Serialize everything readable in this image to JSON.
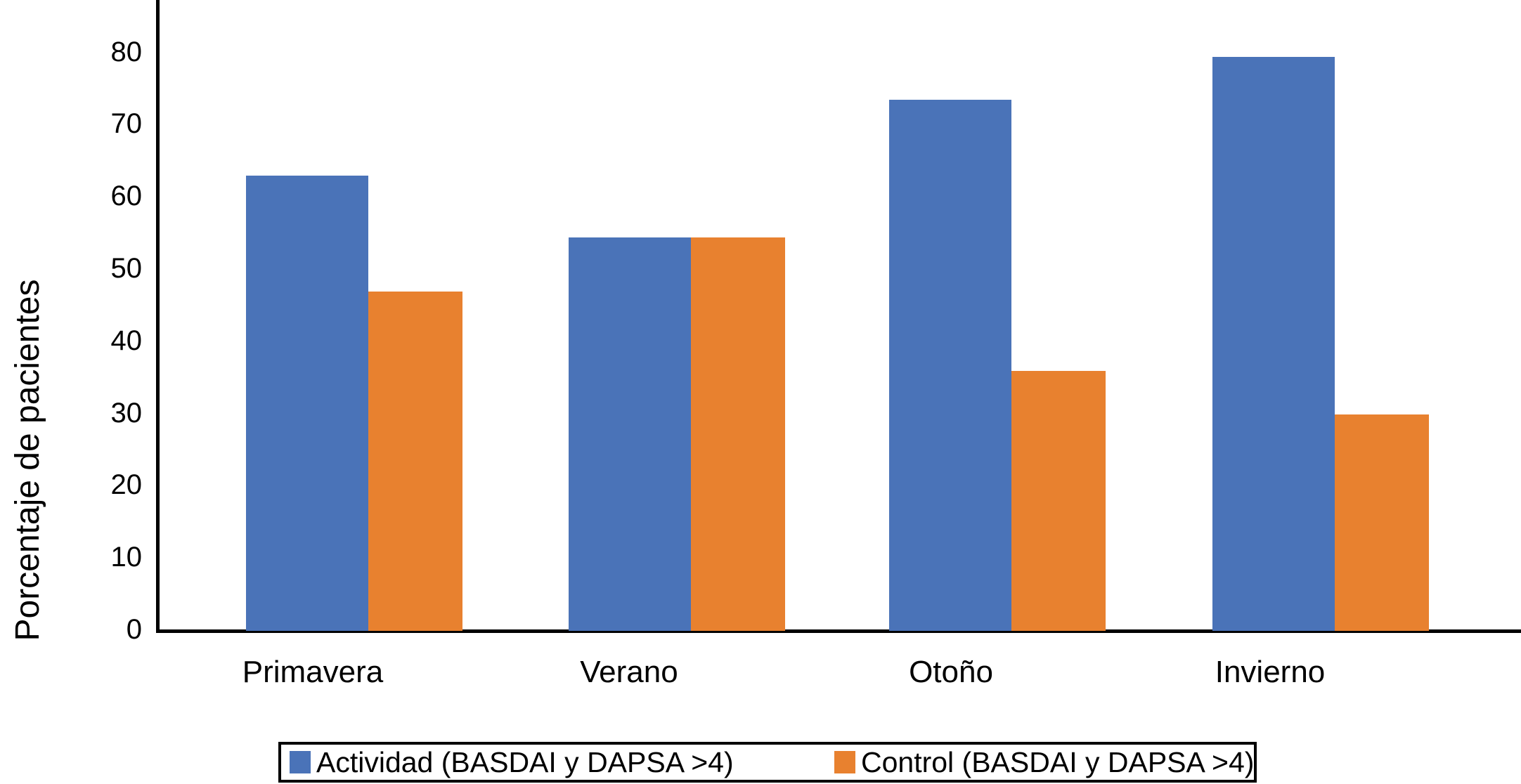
{
  "chart_data": {
    "type": "bar",
    "title": "",
    "xlabel": "",
    "ylabel": "Porcentaje de pacientes",
    "categories": [
      "Primavera",
      "Verano",
      "Otoño",
      "Invierno"
    ],
    "series": [
      {
        "name": "Actividad (BASDAI y DAPSA >4)",
        "color": "#4A73B8",
        "values": [
          63,
          54.5,
          73.5,
          79.5
        ]
      },
      {
        "name": "Control (BASDAI y DAPSA >4)",
        "color": "#E8812F",
        "values": [
          47,
          54.5,
          36,
          30
        ]
      }
    ],
    "ylim": [
      0,
      80
    ],
    "yticks": [
      0,
      10,
      20,
      30,
      40,
      50,
      60,
      70,
      80
    ],
    "grid": false,
    "legend_position": "bottom",
    "legend_border": true,
    "axis_color": "#000000",
    "background_color": "#FFFFFF"
  }
}
